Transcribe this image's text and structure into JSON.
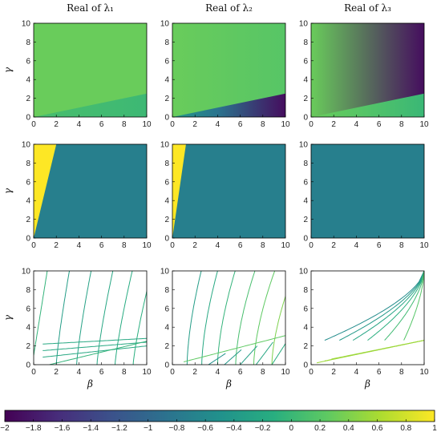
{
  "chart_data": {
    "type": "heatmap",
    "panel_titles": [
      "Real of λ₁",
      "Real of λ₂",
      "Real of λ₃"
    ],
    "xlabel": "β",
    "ylabel": "γ",
    "xlim": [
      0,
      10
    ],
    "ylim": [
      0,
      10
    ],
    "xticks": [
      "0",
      "2",
      "4",
      "6",
      "8",
      "10"
    ],
    "yticks": [
      "0",
      "2",
      "4",
      "6",
      "8",
      "10"
    ],
    "colormap": "viridis",
    "colorbar": {
      "range": [
        -2,
        1
      ],
      "ticks": [
        "−2",
        "−1.8",
        "−1.6",
        "−1.4",
        "−1.2",
        "−1",
        "−0.8",
        "−0.6",
        "−0.4",
        "−0.2",
        "0",
        "0.2",
        "0.4",
        "0.6",
        "0.8",
        "1"
      ],
      "tick_values": [
        -2,
        -1.8,
        -1.6,
        -1.4,
        -1.2,
        -1,
        -0.8,
        -0.6,
        -0.4,
        -0.2,
        0,
        0.2,
        0.4,
        0.6,
        0.8,
        1
      ]
    },
    "rows": [
      {
        "kind": "field",
        "panels": [
          {
            "boundary_slope": 0.25,
            "above": [
              0.3,
              0.3
            ],
            "below": [
              0.1,
              0.02
            ]
          },
          {
            "boundary_slope": 0.25,
            "above": [
              0.3,
              0.2
            ],
            "below": [
              -0.4,
              -1.9
            ]
          },
          {
            "boundary_slope": 0.25,
            "above": [
              0.3,
              -1.9
            ],
            "below": [
              0.3,
              0.0
            ]
          }
        ]
      },
      {
        "kind": "regions",
        "panels": [
          {
            "yellow_wedge_beta_at_gamma10": 2.0,
            "yellow_value": 1,
            "other_value": -0.72
          },
          {
            "yellow_wedge_beta_at_gamma10": 1.2,
            "yellow_value": 1,
            "other_value": -0.72
          },
          {
            "yellow_wedge_beta_at_gamma10": 0,
            "yellow_value": 1,
            "other_value": -0.72
          }
        ]
      },
      {
        "kind": "contours",
        "panels": [
          {},
          {},
          {}
        ]
      }
    ]
  }
}
